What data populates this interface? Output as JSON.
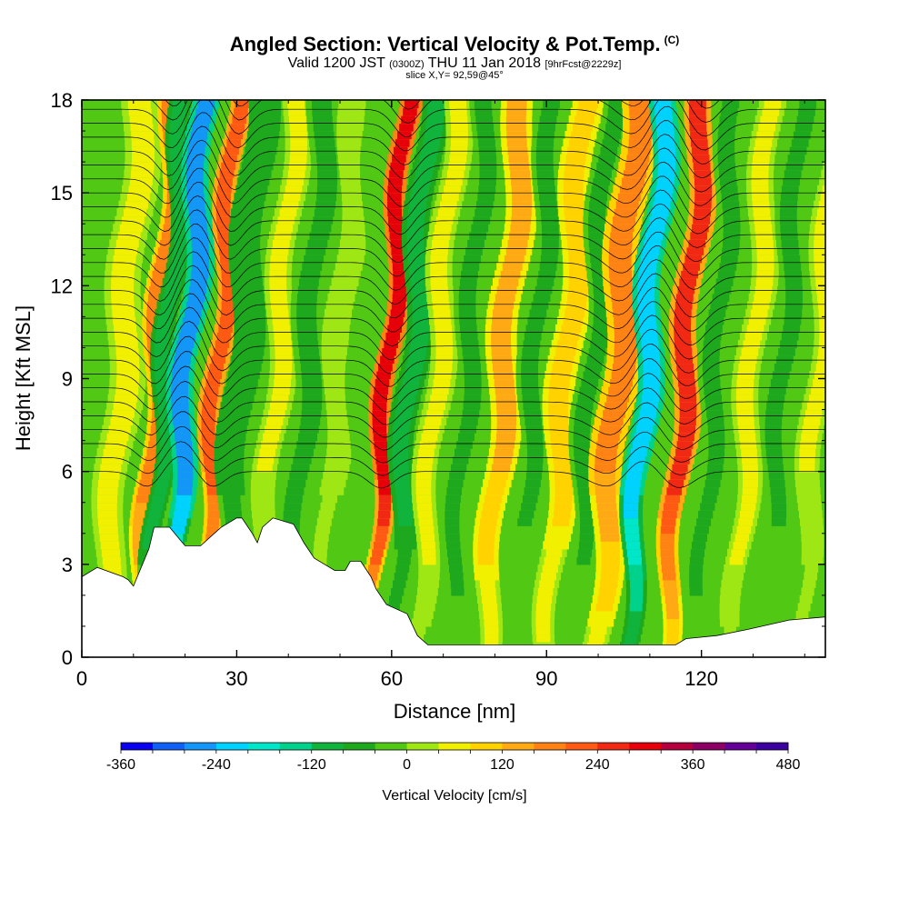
{
  "header": {
    "title": "Angled Section: Vertical Velocity & Pot.Temp.",
    "title_suffix": "(C)",
    "valid_a": "Valid 1200 JST",
    "valid_z": "(0300Z)",
    "valid_b": "THU 11 Jan 2018",
    "fcst": "[9hrFcst@2229z]",
    "slice": "slice X,Y= 92,59@45°"
  },
  "chart_data": {
    "type": "heatmap",
    "title": "Angled Section: Vertical Velocity & Pot.Temp.",
    "xlabel": "Distance [nm]",
    "ylabel": "Height [Kft MSL]",
    "xlim": [
      0,
      144
    ],
    "ylim": [
      0,
      18
    ],
    "x_ticks": [
      "0",
      "30",
      "60",
      "90",
      "120"
    ],
    "x_tick_values": [
      0,
      30,
      60,
      90,
      120
    ],
    "y_ticks": [
      "0",
      "3",
      "6",
      "9",
      "12",
      "15",
      "18"
    ],
    "y_tick_values": [
      0,
      3,
      6,
      9,
      12,
      15,
      18
    ],
    "colorbar": {
      "label": "Vertical Velocity [cm/s]",
      "min": -360,
      "max": 480,
      "step": 40,
      "tick_labels": [
        "-360",
        "-240",
        "-120",
        "0",
        "120",
        "240",
        "360",
        "480"
      ],
      "tick_values": [
        -360,
        -240,
        -120,
        0,
        120,
        240,
        360,
        480
      ],
      "colors": [
        "#0a00f0",
        "#1060f5",
        "#1496f8",
        "#00d2ff",
        "#00e6c8",
        "#00d28c",
        "#10b43c",
        "#1ea81e",
        "#50c814",
        "#9ee614",
        "#f0f000",
        "#ffd200",
        "#ffaa14",
        "#ff8214",
        "#ff5a14",
        "#f02814",
        "#e6000a",
        "#b4003c",
        "#8c0064",
        "#640096",
        "#3c00a0"
      ]
    },
    "vertical_velocity_bands": [
      {
        "x": 4,
        "w": 4,
        "v": 70
      },
      {
        "x": 10.5,
        "w": 2.5,
        "v": 180
      },
      {
        "x": 12.5,
        "w": 2.5,
        "v": -110
      },
      {
        "x": 16.5,
        "w": 3,
        "v": -260
      },
      {
        "x": 22.5,
        "w": 2.5,
        "v": 220
      },
      {
        "x": 27,
        "w": 3.5,
        "v": -80
      },
      {
        "x": 34,
        "w": 3,
        "v": 40
      },
      {
        "x": 40,
        "w": 3.5,
        "v": -60
      },
      {
        "x": 46,
        "w": 3,
        "v": 30
      },
      {
        "x": 51,
        "w": 3,
        "v": -40
      },
      {
        "x": 55.5,
        "w": 2.5,
        "v": 300
      },
      {
        "x": 60,
        "w": 3,
        "v": -100
      },
      {
        "x": 65,
        "w": 3,
        "v": 60
      },
      {
        "x": 71,
        "w": 3,
        "v": -70
      },
      {
        "x": 78,
        "w": 3.5,
        "v": 120
      },
      {
        "x": 84,
        "w": 3,
        "v": -50
      },
      {
        "x": 90,
        "w": 3.5,
        "v": 100
      },
      {
        "x": 95,
        "w": 3,
        "v": -60
      },
      {
        "x": 100,
        "w": 4,
        "v": 160
      },
      {
        "x": 105.5,
        "w": 3,
        "v": -240
      },
      {
        "x": 113,
        "w": 3,
        "v": 260
      },
      {
        "x": 119,
        "w": 3,
        "v": -70
      },
      {
        "x": 126,
        "w": 3,
        "v": 60
      },
      {
        "x": 132,
        "w": 3,
        "v": -50
      },
      {
        "x": 139,
        "w": 3,
        "v": 40
      }
    ],
    "terrain": [
      [
        0,
        2.6
      ],
      [
        3,
        2.9
      ],
      [
        8,
        2.6
      ],
      [
        9,
        2.5
      ],
      [
        10,
        2.3
      ],
      [
        11,
        2.7
      ],
      [
        13,
        3.5
      ],
      [
        14,
        4.2
      ],
      [
        17,
        4.2
      ],
      [
        19,
        3.8
      ],
      [
        20,
        3.6
      ],
      [
        23,
        3.6
      ],
      [
        25,
        3.9
      ],
      [
        27,
        4.2
      ],
      [
        30,
        4.5
      ],
      [
        31,
        4.5
      ],
      [
        33,
        4.0
      ],
      [
        34,
        3.7
      ],
      [
        35,
        4.2
      ],
      [
        37,
        4.5
      ],
      [
        41,
        4.3
      ],
      [
        43,
        3.7
      ],
      [
        45,
        3.2
      ],
      [
        47,
        3.0
      ],
      [
        49,
        2.8
      ],
      [
        51,
        2.8
      ],
      [
        52,
        3.1
      ],
      [
        54,
        3.1
      ],
      [
        56,
        2.6
      ],
      [
        57,
        2.2
      ],
      [
        59,
        1.7
      ],
      [
        63,
        1.4
      ],
      [
        65,
        0.7
      ],
      [
        67,
        0.4
      ],
      [
        81,
        0.4
      ],
      [
        115,
        0.4
      ],
      [
        117,
        0.6
      ],
      [
        123,
        0.7
      ],
      [
        129,
        0.9
      ],
      [
        137,
        1.2
      ],
      [
        144,
        1.3
      ]
    ],
    "theta_isolines": "approximately 30 potential temperature contours (black lines) bending downward over downdraft columns"
  }
}
